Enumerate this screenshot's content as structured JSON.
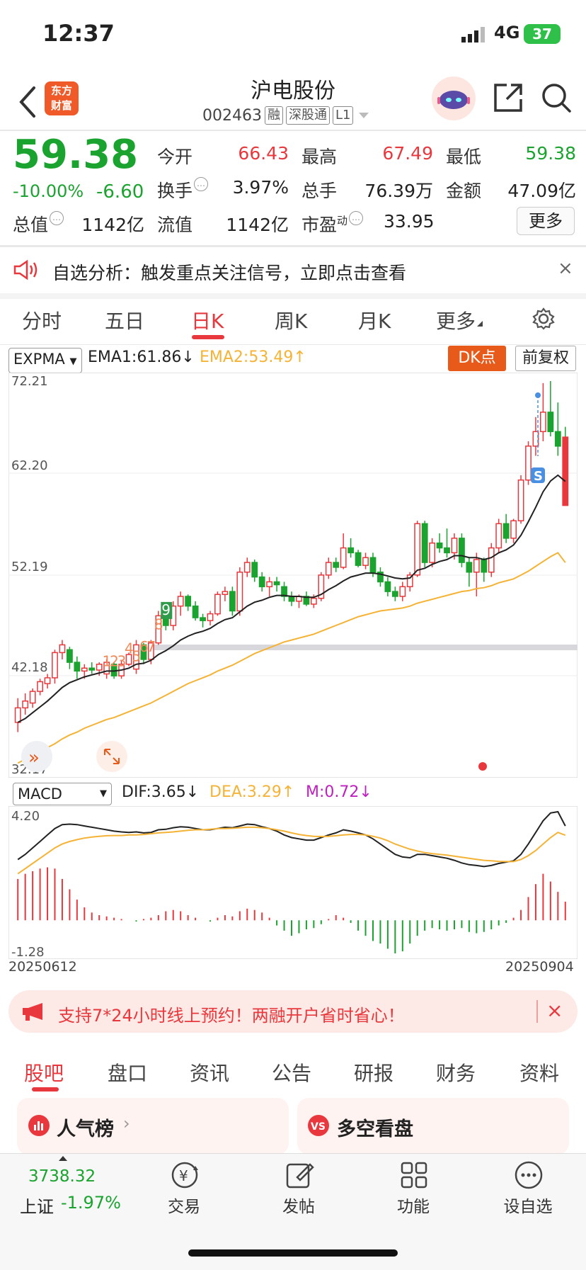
{
  "status_bar": {
    "time": "12:37",
    "network": "4G",
    "battery": "37"
  },
  "header": {
    "logo_line1": "东方",
    "logo_line2": "财富",
    "stock_name": "沪电股份",
    "stock_code": "002463",
    "tags": [
      "融",
      "深股通",
      "L1"
    ]
  },
  "quote": {
    "price": "59.38",
    "change_pct": "-10.00%",
    "change_val": "-6.60",
    "fields": [
      {
        "label": "今开",
        "value": "66.43",
        "color": "#e8383d"
      },
      {
        "label": "最高",
        "value": "67.49",
        "color": "#e8383d"
      },
      {
        "label": "最低",
        "value": "59.38",
        "color": "#1aa32f"
      },
      {
        "label": "换手",
        "value": "3.97%",
        "color": "#222222"
      },
      {
        "label": "总手",
        "value": "76.39万",
        "color": "#222222"
      },
      {
        "label": "金额",
        "value": "47.09亿",
        "color": "#222222"
      },
      {
        "label": "总值",
        "value": "1142亿",
        "color": "#222222"
      },
      {
        "label": "流值",
        "value": "1142亿",
        "color": "#222222"
      },
      {
        "label": "市盈",
        "sup": "动",
        "value": "33.95",
        "color": "#222222"
      }
    ],
    "more_label": "更多"
  },
  "notice": {
    "text": "自选分析：触发重点关注信号，立即点击查看",
    "close": "×"
  },
  "period_tabs": [
    "分时",
    "五日",
    "日K",
    "周K",
    "月K",
    "更多"
  ],
  "kline": {
    "indicator": "EXPMA",
    "ema1_label": "EMA1:61.86",
    "ema2_label": "EMA2:53.49",
    "dk_label": "DK点",
    "fq_label": "前复权",
    "y_ticks": [
      "72.21",
      "62.20",
      "52.19",
      "42.18",
      "32.17"
    ],
    "sell_marker": "S",
    "buy_markers": [
      "1",
      "2",
      "3",
      "4",
      "5",
      "6",
      "7",
      "8",
      "9"
    ]
  },
  "macd": {
    "indicator": "MACD",
    "dif_label": "DIF:3.65",
    "dea_label": "DEA:3.29",
    "m_label": "M:0.72",
    "y_ticks": [
      "4.20",
      "-1.28"
    ],
    "start_date": "20250612",
    "end_date": "20250904"
  },
  "chart_data": {
    "type": "candlestick",
    "y_range": [
      32.17,
      72.21
    ],
    "candles": [
      [
        37.0,
        39.5,
        36.0,
        38.5
      ],
      [
        38.5,
        40.0,
        37.8,
        39.2
      ],
      [
        39.0,
        40.5,
        38.5,
        40.2
      ],
      [
        40.2,
        41.5,
        39.8,
        41.2
      ],
      [
        41.0,
        42.0,
        40.5,
        41.6
      ],
      [
        41.6,
        44.5,
        41.0,
        44.2
      ],
      [
        44.2,
        45.5,
        43.5,
        45.0
      ],
      [
        44.5,
        44.8,
        42.5,
        43.2
      ],
      [
        43.2,
        43.8,
        41.5,
        42.3
      ],
      [
        42.3,
        43.0,
        41.5,
        42.6
      ],
      [
        42.6,
        43.2,
        42.0,
        42.4
      ],
      [
        42.4,
        43.2,
        41.8,
        43.0
      ],
      [
        42.0,
        43.5,
        41.5,
        43.2
      ],
      [
        43.0,
        43.2,
        41.5,
        41.8
      ],
      [
        41.8,
        43.4,
        41.5,
        43.0
      ],
      [
        43.0,
        44.2,
        42.8,
        44.0
      ],
      [
        42.5,
        45.5,
        42.0,
        45.0
      ],
      [
        45.0,
        45.2,
        43.0,
        43.5
      ],
      [
        43.5,
        45.5,
        43.0,
        45.2
      ],
      [
        45.2,
        48.5,
        45.0,
        48.0
      ],
      [
        48.0,
        48.8,
        46.5,
        47.0
      ],
      [
        47.0,
        49.5,
        46.5,
        49.0
      ],
      [
        49.0,
        50.5,
        48.0,
        50.0
      ],
      [
        50.0,
        50.2,
        48.5,
        49.0
      ],
      [
        49.0,
        49.5,
        47.5,
        47.8
      ],
      [
        47.8,
        48.2,
        46.8,
        47.5
      ],
      [
        47.5,
        48.5,
        47.0,
        48.2
      ],
      [
        48.2,
        50.5,
        48.0,
        50.2
      ],
      [
        50.2,
        51.0,
        49.5,
        50.5
      ],
      [
        50.5,
        51.0,
        48.0,
        48.5
      ],
      [
        48.5,
        53.0,
        48.0,
        52.5
      ],
      [
        52.5,
        54.0,
        52.0,
        53.5
      ],
      [
        53.5,
        53.8,
        51.5,
        52.0
      ],
      [
        52.0,
        52.5,
        50.5,
        51.0
      ],
      [
        51.0,
        52.0,
        50.0,
        51.5
      ],
      [
        51.5,
        52.0,
        50.5,
        51.2
      ],
      [
        51.0,
        51.5,
        49.5,
        50.0
      ],
      [
        50.0,
        50.5,
        49.0,
        49.5
      ],
      [
        49.5,
        50.2,
        48.8,
        50.0
      ],
      [
        50.0,
        50.5,
        49.0,
        49.2
      ],
      [
        49.2,
        50.2,
        48.8,
        49.8
      ],
      [
        49.8,
        52.5,
        49.5,
        52.2
      ],
      [
        52.2,
        54.0,
        51.8,
        53.5
      ],
      [
        53.5,
        54.0,
        52.5,
        53.0
      ],
      [
        53.0,
        56.5,
        52.8,
        55.0
      ],
      [
        55.0,
        56.0,
        54.0,
        54.5
      ],
      [
        54.5,
        54.8,
        53.0,
        53.2
      ],
      [
        53.2,
        54.5,
        52.8,
        54.0
      ],
      [
        54.0,
        54.5,
        52.0,
        52.5
      ],
      [
        52.5,
        53.0,
        51.0,
        51.5
      ],
      [
        51.5,
        52.0,
        50.0,
        50.5
      ],
      [
        50.5,
        51.0,
        49.5,
        50.0
      ],
      [
        50.0,
        51.5,
        49.5,
        51.0
      ],
      [
        51.0,
        52.5,
        50.5,
        52.2
      ],
      [
        52.2,
        57.8,
        52.0,
        57.5
      ],
      [
        57.5,
        57.8,
        53.0,
        53.5
      ],
      [
        53.5,
        56.0,
        53.0,
        55.5
      ],
      [
        55.5,
        56.5,
        54.5,
        55.0
      ],
      [
        55.0,
        57.0,
        54.0,
        54.5
      ],
      [
        54.5,
        56.5,
        53.8,
        56.0
      ],
      [
        56.0,
        56.5,
        53.0,
        53.5
      ],
      [
        53.5,
        54.0,
        51.0,
        52.5
      ],
      [
        52.5,
        54.5,
        50.0,
        53.8
      ],
      [
        53.8,
        54.0,
        51.5,
        52.5
      ],
      [
        52.5,
        55.5,
        52.0,
        55.0
      ],
      [
        55.0,
        58.0,
        54.5,
        57.5
      ],
      [
        57.5,
        58.5,
        55.5,
        56.0
      ],
      [
        56.0,
        58.0,
        55.5,
        57.8
      ],
      [
        57.8,
        62.5,
        57.5,
        62.0
      ],
      [
        62.0,
        66.0,
        61.5,
        65.5
      ],
      [
        65.5,
        68.5,
        64.5,
        67.0
      ],
      [
        67.0,
        72.0,
        66.0,
        69.0
      ],
      [
        69.0,
        72.21,
        66.5,
        67.0
      ],
      [
        67.0,
        70.0,
        64.5,
        65.5
      ],
      [
        66.43,
        67.49,
        59.38,
        59.38
      ]
    ],
    "ema1": [
      37.0,
      37.4,
      38.0,
      38.6,
      39.2,
      39.9,
      40.6,
      41.1,
      41.4,
      41.7,
      41.9,
      42.1,
      42.3,
      42.3,
      42.4,
      42.6,
      43.0,
      43.1,
      43.4,
      44.0,
      44.4,
      44.9,
      45.5,
      45.9,
      46.2,
      46.4,
      46.7,
      47.2,
      47.6,
      47.8,
      48.4,
      49.0,
      49.4,
      49.6,
      49.9,
      50.1,
      50.1,
      50.0,
      50.0,
      49.9,
      49.9,
      50.2,
      50.7,
      51.1,
      51.6,
      52.0,
      52.2,
      52.4,
      52.4,
      52.3,
      52.1,
      51.9,
      51.8,
      51.9,
      52.7,
      52.9,
      53.3,
      53.6,
      53.8,
      54.2,
      54.2,
      54.0,
      54.0,
      53.8,
      54.0,
      54.5,
      54.8,
      55.3,
      56.3,
      57.7,
      59.2,
      60.8,
      61.9,
      62.5,
      61.86
    ],
    "ema2": [
      32.8,
      33.2,
      33.6,
      34.0,
      34.4,
      34.8,
      35.3,
      35.7,
      36.0,
      36.4,
      36.7,
      37.0,
      37.3,
      37.5,
      37.8,
      38.1,
      38.4,
      38.7,
      39.0,
      39.4,
      39.8,
      40.2,
      40.6,
      41.0,
      41.3,
      41.6,
      41.9,
      42.3,
      42.6,
      42.9,
      43.3,
      43.7,
      44.1,
      44.4,
      44.7,
      45.0,
      45.3,
      45.5,
      45.7,
      45.9,
      46.1,
      46.4,
      46.7,
      47.0,
      47.3,
      47.6,
      47.9,
      48.1,
      48.3,
      48.5,
      48.6,
      48.7,
      48.8,
      49.0,
      49.3,
      49.5,
      49.7,
      49.9,
      50.1,
      50.3,
      50.5,
      50.6,
      50.8,
      50.9,
      51.1,
      51.4,
      51.6,
      51.8,
      52.2,
      52.6,
      53.1,
      53.6,
      54.1,
      54.5,
      53.49
    ],
    "macd_range": [
      -1.28,
      4.2
    ],
    "dif": [
      2.35,
      2.55,
      2.8,
      3.05,
      3.3,
      3.55,
      3.7,
      3.72,
      3.7,
      3.65,
      3.6,
      3.55,
      3.5,
      3.45,
      3.42,
      3.4,
      3.42,
      3.38,
      3.4,
      3.5,
      3.52,
      3.58,
      3.62,
      3.6,
      3.55,
      3.5,
      3.5,
      3.55,
      3.6,
      3.58,
      3.65,
      3.72,
      3.7,
      3.62,
      3.55,
      3.45,
      3.3,
      3.2,
      3.15,
      3.1,
      3.1,
      3.2,
      3.3,
      3.38,
      3.5,
      3.45,
      3.38,
      3.3,
      3.15,
      2.95,
      2.75,
      2.55,
      2.45,
      2.42,
      2.55,
      2.55,
      2.5,
      2.45,
      2.4,
      2.32,
      2.22,
      2.15,
      2.12,
      2.08,
      2.12,
      2.2,
      2.25,
      2.3,
      2.55,
      2.95,
      3.4,
      3.85,
      4.15,
      4.2,
      3.65
    ],
    "dea": [
      1.8,
      2.0,
      2.2,
      2.4,
      2.6,
      2.8,
      2.95,
      3.05,
      3.12,
      3.18,
      3.22,
      3.25,
      3.27,
      3.28,
      3.28,
      3.3,
      3.3,
      3.32,
      3.35,
      3.38,
      3.4,
      3.42,
      3.45,
      3.48,
      3.5,
      3.5,
      3.52,
      3.55,
      3.55,
      3.56,
      3.58,
      3.6,
      3.6,
      3.58,
      3.55,
      3.5,
      3.45,
      3.38,
      3.32,
      3.28,
      3.25,
      3.24,
      3.25,
      3.27,
      3.3,
      3.32,
      3.32,
      3.3,
      3.25,
      3.18,
      3.08,
      2.95,
      2.85,
      2.75,
      2.68,
      2.62,
      2.58,
      2.55,
      2.52,
      2.48,
      2.44,
      2.4,
      2.36,
      2.32,
      2.3,
      2.28,
      2.27,
      2.27,
      2.35,
      2.5,
      2.7,
      2.95,
      3.2,
      3.4,
      3.29
    ],
    "m": [
      1.6,
      1.8,
      1.9,
      2.0,
      2.05,
      2.0,
      1.6,
      1.2,
      0.8,
      0.5,
      0.3,
      0.2,
      0.15,
      0.1,
      0.05,
      0.0,
      -0.05,
      0.05,
      0.1,
      0.2,
      0.35,
      0.4,
      0.35,
      0.2,
      0.1,
      0.0,
      -0.05,
      0.1,
      0.2,
      0.15,
      0.35,
      0.45,
      0.4,
      0.3,
      0.1,
      -0.2,
      -0.4,
      -0.6,
      -0.5,
      -0.35,
      -0.3,
      -0.15,
      0.05,
      0.2,
      0.1,
      -0.1,
      -0.4,
      -0.6,
      -0.8,
      -0.9,
      -1.1,
      -1.28,
      -1.2,
      -0.9,
      -0.6,
      -0.4,
      -0.3,
      -0.35,
      -0.4,
      -0.35,
      -0.3,
      -0.45,
      -0.5,
      -0.45,
      -0.35,
      -0.2,
      -0.1,
      0.1,
      0.4,
      0.9,
      1.4,
      1.8,
      1.5,
      1.1,
      0.72
    ]
  },
  "notice_promo": {
    "text": "支持7*24小时线上预约！两融开户省时省心！",
    "close": "×"
  },
  "bottom_tabs": [
    "股吧",
    "盘口",
    "资讯",
    "公告",
    "研报",
    "财务",
    "资料"
  ],
  "cards": [
    {
      "title": "人气榜"
    },
    {
      "title": "多空看盘"
    }
  ],
  "bottom_nav": {
    "index_value": "3738.32",
    "index_name": "上证",
    "index_change": "-1.97%",
    "items": [
      "交易",
      "发帖",
      "功能",
      "设自选"
    ]
  },
  "colors": {
    "up": "#e8383d",
    "down": "#1aa32f",
    "ema1": "#222222",
    "ema2": "#f5b335",
    "dea": "#f5b335",
    "m": "#c020c0",
    "accent": "#e85a1a"
  }
}
